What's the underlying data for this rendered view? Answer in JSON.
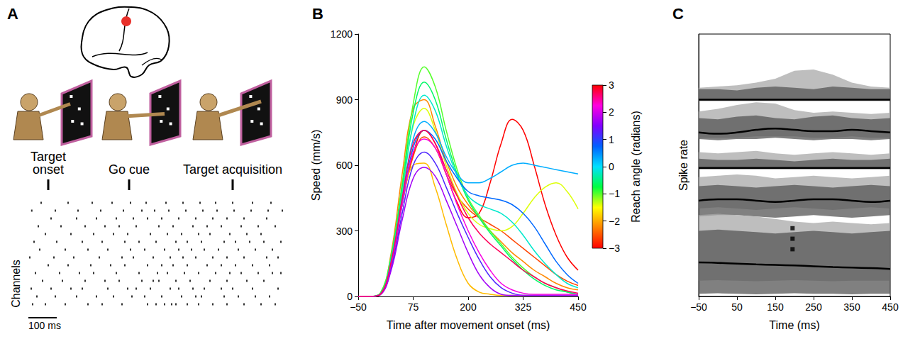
{
  "chart_data": [
    {
      "panel": "A",
      "type": "raster",
      "ylabel": "Channels",
      "events": [
        {
          "label": "Target onset",
          "x": 70
        },
        {
          "label": "Go cue",
          "x": 355
        },
        {
          "label": "Target acquisition",
          "x": 720
        }
      ],
      "scale_bar": {
        "label": "100 ms",
        "value": 100
      },
      "xlim": [
        0,
        900
      ],
      "ylim": [
        0,
        15
      ],
      "tick_labels": false,
      "color": "#000000",
      "marker": "square",
      "spike_times": [
        [
          15,
          60,
          130,
          210,
          260,
          330,
          420,
          450,
          480,
          505,
          520,
          560,
          600,
          650,
          700,
          760,
          820,
          870
        ],
        [
          30,
          95,
          170,
          240,
          300,
          365,
          410,
          470,
          540,
          590,
          610,
          690,
          740,
          800,
          850
        ],
        [
          10,
          80,
          150,
          190,
          280,
          350,
          380,
          430,
          500,
          530,
          580,
          620,
          680,
          720,
          790,
          880
        ],
        [
          50,
          120,
          200,
          270,
          320,
          400,
          440,
          460,
          520,
          570,
          640,
          700,
          770,
          830
        ],
        [
          25,
          110,
          180,
          230,
          310,
          390,
          455,
          490,
          550,
          600,
          660,
          710,
          750,
          810,
          860,
          890
        ],
        [
          70,
          140,
          220,
          290,
          340,
          420,
          470,
          510,
          560,
          630,
          680,
          730,
          790,
          850
        ],
        [
          5,
          90,
          160,
          250,
          330,
          370,
          440,
          500,
          545,
          590,
          650,
          700,
          760,
          840,
          880
        ],
        [
          40,
          130,
          210,
          280,
          360,
          410,
          480,
          530,
          575,
          620,
          670,
          740,
          800,
          860
        ],
        [
          20,
          100,
          190,
          260,
          340,
          390,
          450,
          520,
          560,
          610,
          690,
          730,
          780,
          830,
          890
        ],
        [
          60,
          150,
          230,
          300,
          350,
          430,
          490,
          540,
          600,
          640,
          710,
          770,
          820
        ],
        [
          35,
          115,
          200,
          270,
          320,
          380,
          460,
          510,
          580,
          630,
          680,
          750,
          810,
          870
        ],
        [
          80,
          170,
          240,
          310,
          370,
          420,
          470,
          530,
          590,
          650,
          700,
          760,
          840
        ],
        [
          12,
          95,
          175,
          255,
          335,
          400,
          445,
          495,
          555,
          615,
          665,
          725,
          785,
          845,
          895
        ],
        [
          45,
          140,
          225,
          295,
          360,
          415,
          485,
          545,
          605,
          660,
          720,
          790,
          855
        ]
      ]
    },
    {
      "panel": "B",
      "type": "line",
      "xlabel": "Time after movement onset (ms)",
      "ylabel": "Speed (mm/s)",
      "grid": false,
      "x": [
        -50,
        -25,
        0,
        25,
        50,
        75,
        100,
        125,
        150,
        175,
        200,
        225,
        250,
        275,
        300,
        325,
        350,
        375,
        400,
        425,
        450
      ],
      "xlim": [
        -50,
        450
      ],
      "xticks": [
        {
          "value": -50,
          "label": "−50"
        },
        75,
        200,
        325,
        450
      ],
      "ylim": [
        0,
        1200
      ],
      "yticks": [
        0,
        300,
        600,
        900,
        1200
      ],
      "colorbar": {
        "label": "Reach angle (radians)",
        "range": [
          -3,
          3
        ],
        "ticks": [
          {
            "value": -3,
            "label": "−3"
          },
          {
            "value": -2,
            "label": "−2"
          },
          {
            "value": -1,
            "label": "−1"
          },
          0,
          1,
          2,
          3
        ],
        "colors": [
          "#ff0000",
          "#ff8000",
          "#ffff00",
          "#00ff40",
          "#00e0ff",
          "#0060ff",
          "#8000ff",
          "#ff00e0",
          "#ff0000"
        ]
      },
      "series": [
        {
          "angle": -3.0,
          "values": [
            0,
            0,
            10,
            150,
            430,
            650,
            760,
            700,
            560,
            430,
            360,
            380,
            520,
            700,
            810,
            760,
            600,
            420,
            280,
            180,
            120
          ]
        },
        {
          "angle": -2.6,
          "values": [
            0,
            0,
            8,
            140,
            420,
            640,
            730,
            680,
            560,
            460,
            400,
            360,
            330,
            300,
            260,
            220,
            180,
            140,
            100,
            70,
            50
          ]
        },
        {
          "angle": -2.2,
          "values": [
            0,
            0,
            12,
            200,
            560,
            860,
            900,
            780,
            620,
            500,
            420,
            360,
            300,
            250,
            200,
            160,
            120,
            90,
            60,
            40,
            30
          ]
        },
        {
          "angle": -1.9,
          "values": [
            0,
            0,
            10,
            160,
            420,
            600,
            610,
            500,
            330,
            170,
            60,
            20,
            10,
            5,
            5,
            5,
            5,
            5,
            5,
            5,
            5
          ]
        },
        {
          "angle": -1.4,
          "values": [
            0,
            0,
            10,
            170,
            480,
            780,
            860,
            760,
            600,
            470,
            380,
            330,
            310,
            300,
            320,
            380,
            450,
            500,
            520,
            480,
            400
          ]
        },
        {
          "angle": -1.0,
          "values": [
            0,
            0,
            15,
            190,
            520,
            880,
            1050,
            960,
            760,
            580,
            450,
            370,
            300,
            240,
            180,
            130,
            90,
            60,
            40,
            20,
            10
          ]
        },
        {
          "angle": -0.6,
          "values": [
            0,
            0,
            12,
            180,
            500,
            840,
            980,
            900,
            720,
            560,
            440,
            360,
            290,
            230,
            170,
            120,
            80,
            50,
            30,
            20,
            10
          ]
        },
        {
          "angle": -0.2,
          "values": [
            0,
            0,
            10,
            170,
            470,
            790,
            920,
            850,
            690,
            550,
            460,
            420,
            400,
            380,
            340,
            280,
            210,
            150,
            100,
            60,
            40
          ]
        },
        {
          "angle": 0.3,
          "values": [
            0,
            0,
            10,
            160,
            440,
            720,
            800,
            750,
            640,
            560,
            520,
            520,
            540,
            570,
            600,
            610,
            600,
            590,
            580,
            570,
            560
          ]
        },
        {
          "angle": 0.7,
          "values": [
            0,
            0,
            10,
            150,
            420,
            680,
            760,
            720,
            620,
            540,
            480,
            460,
            450,
            440,
            420,
            380,
            320,
            240,
            160,
            100,
            60
          ]
        },
        {
          "angle": 1.2,
          "values": [
            0,
            0,
            8,
            130,
            380,
            600,
            660,
            610,
            500,
            380,
            270,
            170,
            90,
            40,
            15,
            5,
            5,
            5,
            5,
            5,
            5
          ]
        },
        {
          "angle": 1.7,
          "values": [
            0,
            0,
            8,
            120,
            350,
            540,
            590,
            550,
            440,
            320,
            200,
            100,
            40,
            10,
            5,
            5,
            5,
            5,
            5,
            5,
            5
          ]
        },
        {
          "angle": 2.2,
          "values": [
            0,
            0,
            10,
            150,
            420,
            660,
            720,
            680,
            560,
            420,
            300,
            200,
            120,
            60,
            30,
            15,
            10,
            10,
            10,
            10,
            10
          ]
        },
        {
          "angle": 2.7,
          "values": [
            0,
            0,
            10,
            160,
            450,
            700,
            760,
            700,
            580,
            460,
            360,
            290,
            240,
            200,
            160,
            120,
            90,
            60,
            40,
            25,
            15
          ]
        }
      ]
    },
    {
      "panel": "C",
      "type": "band",
      "xlabel": "Time (ms)",
      "ylabel": "Spike rate",
      "grid": false,
      "tick_labels": "x",
      "x": [
        -50,
        0,
        50,
        100,
        150,
        200,
        250,
        300,
        350,
        400,
        450
      ],
      "xlim": [
        -50,
        450
      ],
      "xticks": [
        {
          "value": -50,
          "label": "−50"
        },
        50,
        150,
        250,
        350,
        450
      ],
      "ylim": [
        0,
        10
      ],
      "series": [
        {
          "color": "#000000",
          "mean": [
            7.5,
            7.5,
            7.5,
            7.5,
            7.5,
            7.5,
            7.5,
            7.5,
            7.5,
            7.5,
            7.5
          ],
          "bands": [
            {
              "color": "#a8a8a8",
              "lower": [
                7.45,
                7.45,
                7.45,
                7.45,
                7.45,
                7.45,
                7.45,
                7.45,
                7.45,
                7.45,
                7.45
              ],
              "upper": [
                7.95,
                8.0,
                8.05,
                8.15,
                8.3,
                8.6,
                8.65,
                8.45,
                8.15,
                8.0,
                7.95
              ]
            },
            {
              "color": "#555555",
              "lower": [
                7.45,
                7.45,
                7.45,
                7.45,
                7.45,
                7.45,
                7.45,
                7.45,
                7.45,
                7.45,
                7.45
              ],
              "upper": [
                7.9,
                7.9,
                7.85,
                7.95,
                8.0,
                7.95,
                7.9,
                8.0,
                7.95,
                7.9,
                7.9
              ]
            }
          ]
        },
        {
          "color": "#000000",
          "mean": [
            6.25,
            6.2,
            6.25,
            6.35,
            6.4,
            6.35,
            6.3,
            6.3,
            6.35,
            6.3,
            6.25
          ],
          "bands": [
            {
              "color": "#a8a8a8",
              "lower": [
                6.05,
                6.05,
                6.05,
                6.1,
                6.1,
                6.1,
                6.05,
                6.05,
                6.1,
                6.05,
                6.05
              ],
              "upper": [
                7.05,
                7.15,
                7.3,
                7.4,
                7.35,
                7.1,
                7.0,
                7.05,
                7.0,
                6.95,
                7.0
              ]
            },
            {
              "color": "#555555",
              "lower": [
                6.0,
                5.95,
                6.0,
                6.0,
                6.05,
                6.0,
                5.95,
                6.0,
                6.0,
                5.95,
                6.0
              ],
              "upper": [
                6.8,
                6.75,
                6.85,
                6.9,
                6.8,
                6.75,
                6.85,
                6.9,
                6.8,
                6.75,
                6.8
              ]
            }
          ]
        },
        {
          "color": "#000000",
          "mean": [
            4.9,
            4.9,
            4.9,
            4.9,
            4.9,
            4.9,
            4.9,
            4.9,
            4.9,
            4.9,
            4.9
          ],
          "bands": [
            {
              "color": "#a8a8a8",
              "lower": [
                4.85,
                4.85,
                4.85,
                4.85,
                4.85,
                4.85,
                4.85,
                4.85,
                4.85,
                4.85,
                4.85
              ],
              "upper": [
                5.5,
                5.45,
                5.5,
                5.55,
                5.45,
                5.4,
                5.45,
                5.5,
                5.45,
                5.4,
                5.45
              ]
            },
            {
              "color": "#555555",
              "lower": [
                4.85,
                4.85,
                4.85,
                4.85,
                4.85,
                4.85,
                4.85,
                4.85,
                4.85,
                4.85,
                4.85
              ],
              "upper": [
                5.25,
                5.2,
                5.2,
                5.25,
                5.2,
                5.15,
                5.2,
                5.25,
                5.2,
                5.2,
                5.25
              ]
            }
          ]
        },
        {
          "color": "#000000",
          "mean": [
            3.65,
            3.7,
            3.7,
            3.65,
            3.6,
            3.65,
            3.7,
            3.7,
            3.65,
            3.6,
            3.65
          ],
          "bands": [
            {
              "color": "#a8a8a8",
              "lower": [
                3.35,
                3.4,
                3.35,
                3.3,
                3.35,
                3.4,
                3.35,
                3.3,
                3.35,
                3.4,
                3.35
              ],
              "upper": [
                4.55,
                4.6,
                4.65,
                4.6,
                4.5,
                4.55,
                4.6,
                4.55,
                4.5,
                4.55,
                4.6
              ]
            },
            {
              "color": "#555555",
              "lower": [
                3.05,
                3.1,
                3.1,
                3.05,
                3.0,
                3.05,
                3.1,
                3.05,
                3.0,
                3.05,
                3.1
              ],
              "upper": [
                4.2,
                4.25,
                4.2,
                4.15,
                4.2,
                4.25,
                4.2,
                4.15,
                4.2,
                4.25,
                4.2
              ]
            }
          ]
        },
        {
          "color": "#000000",
          "mean": [
            1.3,
            1.28,
            1.25,
            1.22,
            1.2,
            1.18,
            1.15,
            1.12,
            1.1,
            1.08,
            1.05
          ],
          "bands": [
            {
              "color": "#a8a8a8",
              "lower": [
                0.6,
                0.62,
                0.6,
                0.58,
                0.6,
                0.62,
                0.6,
                0.58,
                0.6,
                0.6,
                0.6
              ],
              "upper": [
                3.1,
                3.15,
                3.1,
                3.05,
                2.95,
                2.85,
                2.8,
                2.85,
                2.8,
                2.75,
                2.8
              ]
            },
            {
              "color": "#555555",
              "lower": [
                0.1,
                0.12,
                0.1,
                0.08,
                0.1,
                0.12,
                0.1,
                0.1,
                0.08,
                0.1,
                0.1
              ],
              "upper": [
                2.5,
                2.55,
                2.5,
                2.45,
                2.4,
                2.45,
                2.5,
                2.45,
                2.4,
                2.45,
                2.5
              ]
            }
          ]
        }
      ],
      "markers": {
        "x": [
          195,
          195,
          195
        ],
        "y": [
          2.6,
          2.2,
          1.8
        ],
        "marker": "square",
        "color": "#000000"
      }
    }
  ]
}
